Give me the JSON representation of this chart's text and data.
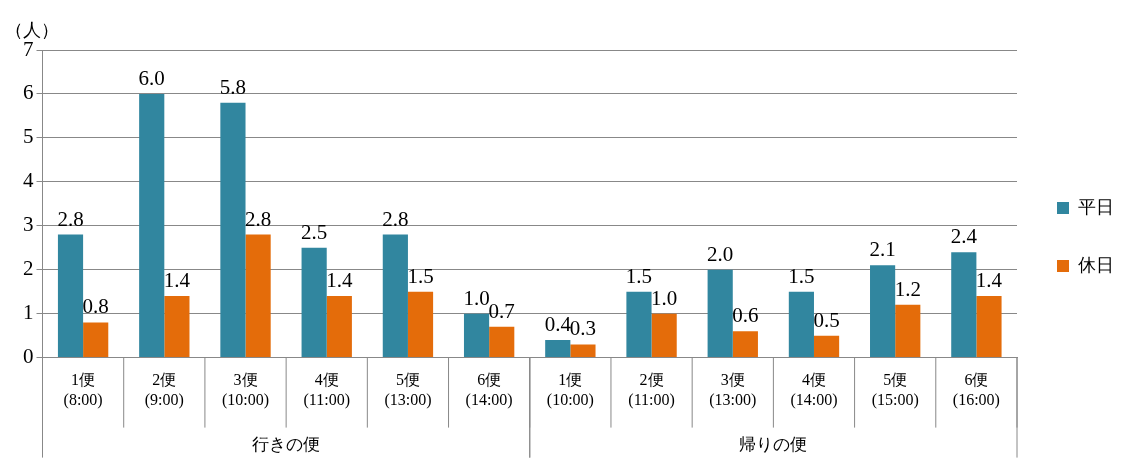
{
  "chart_data": {
    "type": "bar",
    "ylabel": "（人）",
    "categories": [
      "1便\n(8:00)",
      "2便\n(9:00)",
      "3便\n(10:00)",
      "4便\n(11:00)",
      "5便\n(13:00)",
      "6便\n(14:00)",
      "1便\n(10:00)",
      "2便\n(11:00)",
      "3便\n(13:00)",
      "4便\n(14:00)",
      "5便\n(15:00)",
      "6便\n(16:00)"
    ],
    "series": [
      {
        "name": "平日",
        "color": "#31869f",
        "values": [
          2.8,
          6.0,
          5.8,
          2.5,
          2.8,
          1.0,
          0.4,
          1.5,
          2.0,
          1.5,
          2.1,
          2.4
        ],
        "value_labels": [
          "2.8",
          "6.0",
          "5.8",
          "2.5",
          "2.8",
          "1.0",
          "0.4",
          "1.5",
          "2.0",
          "1.5",
          "2.1",
          "2.4"
        ]
      },
      {
        "name": "休日",
        "color": "#e46c0a",
        "values": [
          0.8,
          1.4,
          2.8,
          1.4,
          1.5,
          0.7,
          0.3,
          1.0,
          0.6,
          0.5,
          1.2,
          1.4
        ],
        "value_labels": [
          "0.8",
          "1.4",
          "2.8",
          "1.4",
          "1.5",
          "0.7",
          "0.3",
          "1.0",
          "0.6",
          "0.5",
          "1.2",
          "1.4"
        ]
      }
    ],
    "ylim": [
      0,
      7
    ],
    "yticks": [
      0,
      1,
      2,
      3,
      4,
      5,
      6,
      7
    ],
    "grid": "y",
    "legend": "right",
    "annotations": [
      "行きの便",
      "帰りの便"
    ]
  }
}
